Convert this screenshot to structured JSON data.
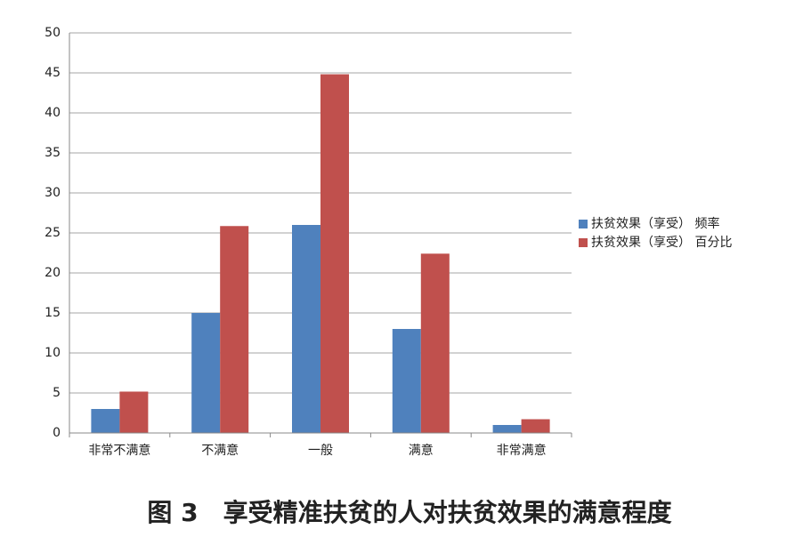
{
  "chart_data": {
    "type": "bar",
    "title": "图 3　享受精准扶贫的人对扶贫效果的满意程度",
    "categories": [
      "非常不满意",
      "不满意",
      "一般",
      "满意",
      "非常满意"
    ],
    "series": [
      {
        "name": "扶贫效果（享受） 频率",
        "color": "#4f81bd",
        "values": [
          3,
          15,
          26,
          13,
          1
        ]
      },
      {
        "name": "扶贫效果（享受） 百分比",
        "color": "#c0504d",
        "values": [
          5.17,
          25.86,
          44.83,
          22.41,
          1.72
        ]
      }
    ],
    "ylim": [
      0,
      50
    ],
    "yticks": [
      0,
      5,
      10,
      15,
      20,
      25,
      30,
      35,
      40,
      45,
      50
    ],
    "grid": true,
    "legend": "right"
  }
}
